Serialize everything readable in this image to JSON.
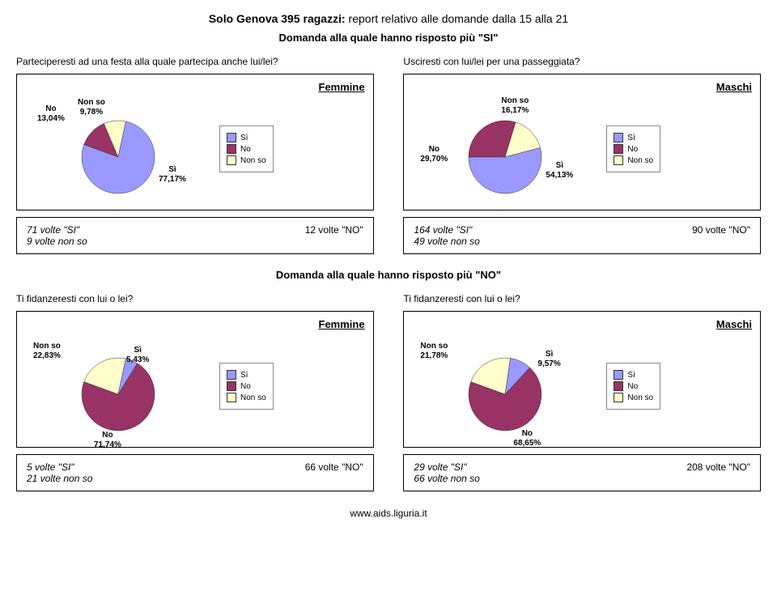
{
  "colors": {
    "si": "#9999ff",
    "no": "#993366",
    "nonso": "#ffffcc"
  },
  "header": {
    "title_bold": "Solo Genova 395 ragazzi:",
    "title_rest": " report relativo alle domande dalla 15 alla 21",
    "subtitle_si": "Domanda alla quale hanno risposto più \"SI\"",
    "subtitle_no": "Domanda alla quale hanno risposto più \"NO\""
  },
  "top": {
    "q_left": "Parteciperesti ad una festa alla quale partecipa anche lui/lei?",
    "q_right": "Usciresti con lui/lei per una passeggiata?",
    "femmine": {
      "label": "Femmine",
      "si": {
        "label": "Sì",
        "pct": "77,17%",
        "val": 77.17
      },
      "no": {
        "label": "No",
        "pct": "13,04%",
        "val": 13.04
      },
      "nonso": {
        "label": "Non so",
        "pct": "9,78%",
        "val": 9.78
      },
      "counts_si": "71 volte \"SI\"",
      "counts_no": "12 volte \"NO\"",
      "counts_nonso": "9 volte non so"
    },
    "maschi": {
      "label": "Maschi",
      "si": {
        "label": "Sì",
        "pct": "54,13%",
        "val": 54.13
      },
      "no": {
        "label": "No",
        "pct": "29,70%",
        "val": 29.7
      },
      "nonso": {
        "label": "Non so",
        "pct": "16,17%",
        "val": 16.17
      },
      "counts_si": "164 volte \"SI\"",
      "counts_no": "90 volte \"NO\"",
      "counts_nonso": "49 volte non so"
    }
  },
  "bottom": {
    "q_left": "Ti fidanzeresti con lui o lei?",
    "q_right": "Ti fidanzeresti con lui o lei?",
    "femmine": {
      "label": "Femmine",
      "si": {
        "label": "Sì",
        "pct": "5,43%",
        "val": 5.43
      },
      "no": {
        "label": "No",
        "pct": "71,74%",
        "val": 71.74
      },
      "nonso": {
        "label": "Non so",
        "pct": "22,83%",
        "val": 22.83
      },
      "counts_si": "5 volte \"SI\"",
      "counts_no": "66 volte \"NO\"",
      "counts_nonso": "21 volte non so"
    },
    "maschi": {
      "label": "Maschi",
      "si": {
        "label": "Sì",
        "pct": "9,57%",
        "val": 9.57
      },
      "no": {
        "label": "No",
        "pct": "68,65%",
        "val": 68.65
      },
      "nonso": {
        "label": "Non so",
        "pct": "21,78%",
        "val": 21.78
      },
      "counts_si": "29 volte \"SI\"",
      "counts_no": "208 volte \"NO\"",
      "counts_nonso": "66 volte non so"
    }
  },
  "legend_labels": {
    "si": "Sì",
    "no": "No",
    "nonso": "Non so"
  },
  "footer": "www.aids.liguria.it"
}
